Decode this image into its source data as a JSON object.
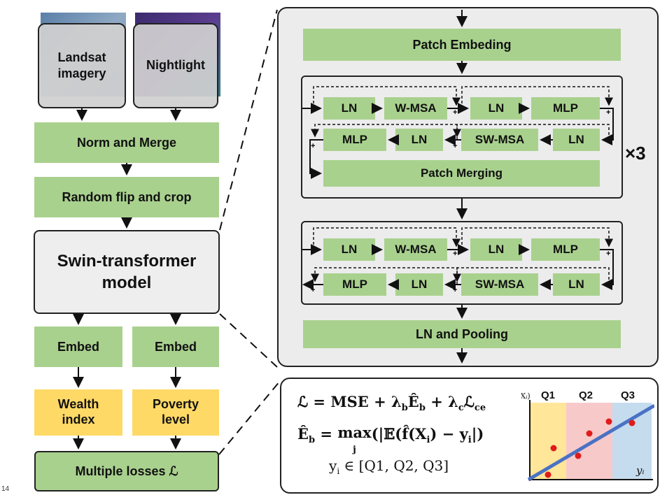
{
  "pipeline": {
    "landsat": "Landsat imagery",
    "nightlight": "Nightlight",
    "norm_merge": "Norm and Merge",
    "random_flip": "Random flip and crop",
    "swin_line1": "Swin-transformer",
    "swin_line2": "model",
    "embed_left": "Embed",
    "embed_right": "Embed",
    "wealth_line1": "Wealth",
    "wealth_line2": "index",
    "poverty_line1": "Poverty",
    "poverty_line2": "level",
    "losses": "Multiple losses ℒ",
    "page_number": "14"
  },
  "architecture": {
    "patch_embedding": "Patch Embeding",
    "stage1": {
      "ln1": "LN",
      "wmsa": "W-MSA",
      "ln2": "LN",
      "mlp1": "MLP",
      "mlp2": "MLP",
      "ln3": "LN",
      "swmsa": "SW-MSA",
      "ln4": "LN",
      "patch_merging": "Patch Merging"
    },
    "repeat_label": "×3",
    "stage2": {
      "ln1": "LN",
      "wmsa": "W-MSA",
      "ln2": "LN",
      "mlp1": "MLP",
      "mlp2": "MLP",
      "ln3": "LN",
      "swmsa": "SW-MSA",
      "ln4": "LN"
    },
    "ln_pooling": "LN and Pooling",
    "plus": "+"
  },
  "loss_panel": {
    "formula1": "ℒ = MSE + λₐ Êₐ + λₑ ℒₑₑ",
    "formula1_parts": {
      "lhs": "ℒ = MSE + λ",
      "b1": "b",
      "eb": "Ê",
      "b2": "b",
      "plus": " + λ",
      "c": "c",
      "lce": "ℒ",
      "ce": "ce"
    },
    "formula2_parts": {
      "eb": "Ê",
      "b": "b",
      "eq": " = ",
      "max": "max",
      "j": "j",
      "body": "(|𝔼(f̂(X",
      "i1": "i",
      "mid": ") − y",
      "i2": "i",
      "end": "|)"
    },
    "formula3_parts": {
      "y": "y",
      "i": "i",
      "rest": " ∈ [Q1, Q2, Q3]"
    }
  },
  "plot": {
    "y_axis_label": "f̂(Xᵢ)",
    "x_axis_label": "yᵢ",
    "quantiles": [
      "Q1",
      "Q2",
      "Q3"
    ],
    "quantile_colors": [
      "#ffe699",
      "#f8c9c9",
      "#c5dcef"
    ],
    "point_color": "#e01b1b",
    "line_color": "#4a72c4"
  }
}
